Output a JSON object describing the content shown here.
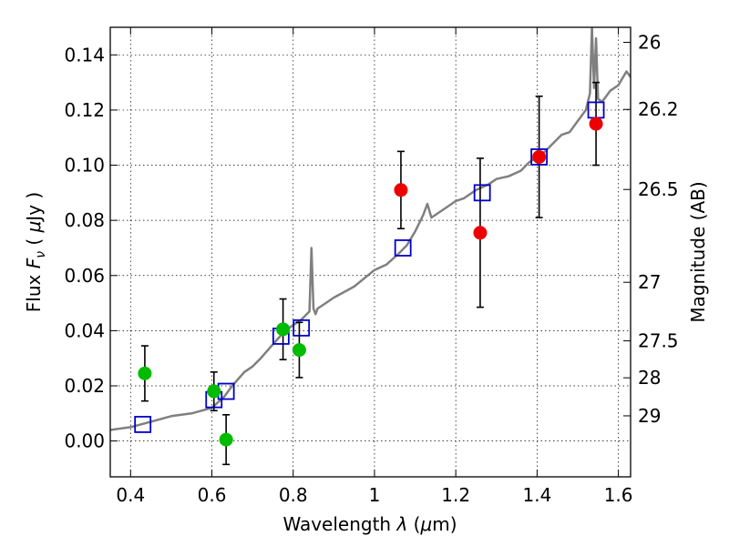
{
  "chart_data": {
    "type": "scatter",
    "xlabel": "Wavelength λ (μm)",
    "ylabel": "Flux F_ν ( μJy )",
    "y2label": "Magnitude (AB)",
    "xlim": [
      0.35,
      1.63
    ],
    "ylim": [
      -0.013,
      0.15
    ],
    "x_ticks": [
      0.4,
      0.6,
      0.8,
      1.0,
      1.2,
      1.4,
      1.6
    ],
    "x_tick_labels": [
      "0.4",
      "0.6",
      "0.8",
      "1",
      "1.2",
      "1.4",
      "1.6"
    ],
    "y_ticks": [
      0.0,
      0.02,
      0.04,
      0.06,
      0.08,
      0.1,
      0.12,
      0.14
    ],
    "y_tick_labels": [
      "0.00",
      "0.02",
      "0.04",
      "0.06",
      "0.08",
      "0.10",
      "0.12",
      "0.14"
    ],
    "y2_ticks": [
      26,
      26.2,
      26.5,
      27,
      27.5,
      28,
      29
    ],
    "y2_tick_labels": [
      "26",
      "26.2",
      "26.5",
      "27",
      "27.5",
      "28",
      "29"
    ],
    "y2_scale": "AB magnitude (flux in μJy)",
    "grid": true,
    "colors": {
      "model": "#808080",
      "box": "#0000cc",
      "green": "#00bb00",
      "red": "#ee0000",
      "errorbar": "#000000"
    },
    "model_spectrum": {
      "x": [
        0.35,
        0.4,
        0.45,
        0.5,
        0.55,
        0.6,
        0.63,
        0.65,
        0.68,
        0.7,
        0.72,
        0.75,
        0.78,
        0.8,
        0.82,
        0.84,
        0.845,
        0.85,
        0.855,
        0.86,
        0.88,
        0.9,
        0.95,
        1.0,
        1.03,
        1.06,
        1.08,
        1.1,
        1.12,
        1.13,
        1.14,
        1.16,
        1.18,
        1.2,
        1.22,
        1.25,
        1.28,
        1.3,
        1.33,
        1.36,
        1.38,
        1.4,
        1.42,
        1.44,
        1.46,
        1.48,
        1.5,
        1.52,
        1.53,
        1.535,
        1.54,
        1.545,
        1.55,
        1.56,
        1.58,
        1.6,
        1.62,
        1.63
      ],
      "y": [
        0.004,
        0.005,
        0.007,
        0.009,
        0.01,
        0.012,
        0.016,
        0.02,
        0.025,
        0.027,
        0.03,
        0.035,
        0.04,
        0.042,
        0.044,
        0.047,
        0.07,
        0.048,
        0.046,
        0.048,
        0.05,
        0.052,
        0.056,
        0.062,
        0.064,
        0.068,
        0.071,
        0.076,
        0.082,
        0.086,
        0.081,
        0.083,
        0.085,
        0.087,
        0.088,
        0.091,
        0.093,
        0.095,
        0.096,
        0.098,
        0.101,
        0.103,
        0.105,
        0.108,
        0.111,
        0.112,
        0.116,
        0.12,
        0.126,
        0.15,
        0.128,
        0.146,
        0.124,
        0.123,
        0.127,
        0.129,
        0.134,
        0.132
      ]
    },
    "series": [
      {
        "marker": "square",
        "color": "#0000cc",
        "x": [
          0.43,
          0.605,
          0.635,
          0.77,
          0.82,
          1.07,
          1.265,
          1.405,
          1.545
        ],
        "y": [
          0.006,
          0.015,
          0.018,
          0.038,
          0.041,
          0.07,
          0.09,
          0.103,
          0.12
        ]
      },
      {
        "marker": "circle",
        "color": "#00bb00",
        "x": [
          0.435,
          0.605,
          0.635,
          0.775,
          0.815
        ],
        "y": [
          0.0245,
          0.018,
          0.0005,
          0.0405,
          0.033
        ],
        "yerr": [
          0.01,
          0.007,
          0.009,
          0.011,
          0.01
        ]
      },
      {
        "marker": "circle",
        "color": "#ee0000",
        "x": [
          1.065,
          1.26,
          1.405,
          1.545
        ],
        "y": [
          0.091,
          0.0755,
          0.103,
          0.115
        ],
        "yerr": [
          0.014,
          0.027,
          0.022,
          0.015
        ]
      }
    ]
  }
}
